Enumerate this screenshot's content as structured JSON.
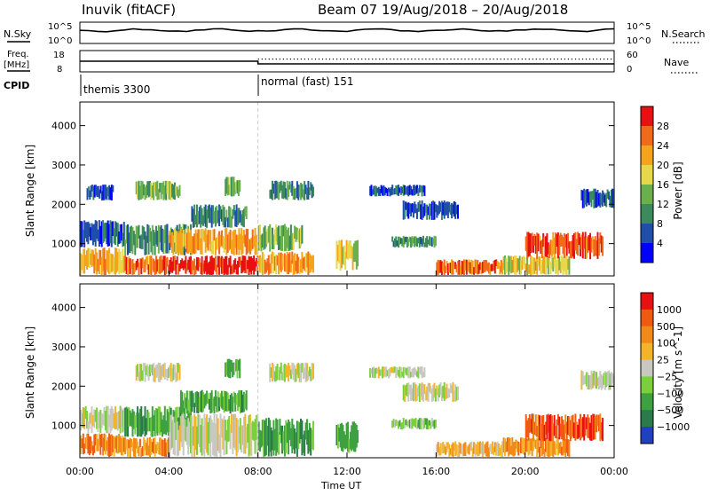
{
  "header": {
    "station": "Inuvik (fitACF)",
    "beam_date": "Beam 07  19/Aug/2018 – 20/Aug/2018"
  },
  "strips": {
    "nsky_label": "N.Sky",
    "nsearch_label": "N.Search",
    "freq_label_1": "Freq.",
    "freq_label_2": "[MHz]",
    "nave_label": "Nave",
    "cpid_label": "CPID",
    "noise_left_ticks": [
      "10^5",
      "10^0"
    ],
    "noise_right_ticks": [
      "10^5",
      "10^0"
    ],
    "freq_ticks": [
      "18",
      "8"
    ],
    "nave_ticks": [
      "60",
      "0"
    ],
    "cpid_segments": [
      {
        "name": "themis 3300",
        "start_hour": 0,
        "end_hour": 8
      },
      {
        "name": "normal (fast) 151",
        "start_hour": 8,
        "end_hour": 24
      }
    ]
  },
  "chart_data": [
    {
      "type": "heatmap",
      "name": "power",
      "ylabel": "Slant Range [km]",
      "yticks": [
        1000,
        2000,
        3000,
        4000
      ],
      "ylim": [
        180,
        4600
      ],
      "xlim": [
        0,
        24
      ],
      "colorbar": {
        "label": "Power [dB]",
        "ticks": [
          "28",
          "24",
          "20",
          "16",
          "12",
          "8",
          "4"
        ],
        "colors": [
          "#0000ff",
          "#1f4fa8",
          "#3a8a5c",
          "#6ab04c",
          "#e6d84a",
          "#f4a41a",
          "#f06a1a",
          "#e81010"
        ]
      },
      "regions": [
        {
          "t0": 0.0,
          "t1": 2.0,
          "r0": 200,
          "r1": 900,
          "level": 5
        },
        {
          "t0": 0.0,
          "t1": 2.0,
          "r0": 900,
          "r1": 1600,
          "level": 1
        },
        {
          "t0": 0.3,
          "t1": 1.5,
          "r0": 2100,
          "r1": 2500,
          "level": 1
        },
        {
          "t0": 2.0,
          "t1": 4.0,
          "r0": 200,
          "r1": 700,
          "level": 6
        },
        {
          "t0": 2.0,
          "t1": 5.0,
          "r0": 700,
          "r1": 1500,
          "level": 2
        },
        {
          "t0": 2.5,
          "t1": 4.5,
          "r0": 2100,
          "r1": 2600,
          "level": 3
        },
        {
          "t0": 4.0,
          "t1": 8.0,
          "r0": 200,
          "r1": 700,
          "level": 7
        },
        {
          "t0": 4.0,
          "t1": 8.0,
          "r0": 700,
          "r1": 1400,
          "level": 5
        },
        {
          "t0": 5.0,
          "t1": 7.5,
          "r0": 1400,
          "r1": 2000,
          "level": 2
        },
        {
          "t0": 6.5,
          "t1": 7.2,
          "r0": 2200,
          "r1": 2700,
          "level": 3
        },
        {
          "t0": 8.0,
          "t1": 10.5,
          "r0": 200,
          "r1": 800,
          "level": 5
        },
        {
          "t0": 8.0,
          "t1": 10.0,
          "r0": 800,
          "r1": 1500,
          "level": 3
        },
        {
          "t0": 8.5,
          "t1": 10.5,
          "r0": 2100,
          "r1": 2600,
          "level": 2
        },
        {
          "t0": 11.5,
          "t1": 12.5,
          "r0": 300,
          "r1": 1100,
          "level": 4
        },
        {
          "t0": 13.0,
          "t1": 15.5,
          "r0": 2200,
          "r1": 2500,
          "level": 1
        },
        {
          "t0": 14.5,
          "t1": 17.0,
          "r0": 1600,
          "r1": 2100,
          "level": 1
        },
        {
          "t0": 14.0,
          "t1": 16.0,
          "r0": 900,
          "r1": 1200,
          "level": 2
        },
        {
          "t0": 16.0,
          "t1": 19.0,
          "r0": 200,
          "r1": 600,
          "level": 6
        },
        {
          "t0": 19.0,
          "t1": 22.0,
          "r0": 200,
          "r1": 700,
          "level": 4
        },
        {
          "t0": 20.0,
          "t1": 23.5,
          "r0": 600,
          "r1": 1300,
          "level": 6
        },
        {
          "t0": 22.5,
          "t1": 24.0,
          "r0": 1900,
          "r1": 2400,
          "level": 1
        }
      ]
    },
    {
      "type": "heatmap",
      "name": "velocity",
      "ylabel": "Slant Range [km]",
      "xlabel": "Time UT",
      "xticks": [
        "00:00",
        "04:00",
        "08:00",
        "12:00",
        "16:00",
        "20:00",
        "00:00"
      ],
      "yticks": [
        1000,
        2000,
        3000,
        4000
      ],
      "ylim": [
        180,
        4600
      ],
      "xlim": [
        0,
        24
      ],
      "colorbar": {
        "label": "Velocity [m s^-1]",
        "ticks": [
          "1000",
          "500",
          "100",
          "25",
          "−25",
          "−100",
          "−500",
          "−1000"
        ],
        "colors": [
          "#2040c0",
          "#2a7a4a",
          "#3fa040",
          "#7ad03a",
          "#c8c8c0",
          "#f4b42a",
          "#f28a1a",
          "#f05a10",
          "#e81010"
        ]
      },
      "regions": [
        {
          "t0": 0.0,
          "t1": 2.0,
          "r0": 200,
          "r1": 800,
          "level": 6
        },
        {
          "t0": 0.0,
          "t1": 2.0,
          "r0": 800,
          "r1": 1500,
          "level": 4
        },
        {
          "t0": 2.5,
          "t1": 4.5,
          "r0": 2100,
          "r1": 2600,
          "level": 4
        },
        {
          "t0": 2.0,
          "t1": 4.0,
          "r0": 200,
          "r1": 700,
          "level": 6
        },
        {
          "t0": 2.0,
          "t1": 5.0,
          "r0": 700,
          "r1": 1500,
          "level": 2
        },
        {
          "t0": 4.0,
          "t1": 8.0,
          "r0": 200,
          "r1": 1300,
          "level": 4
        },
        {
          "t0": 4.5,
          "t1": 7.5,
          "r0": 1300,
          "r1": 1900,
          "level": 2
        },
        {
          "t0": 6.5,
          "t1": 7.2,
          "r0": 2200,
          "r1": 2700,
          "level": 3
        },
        {
          "t0": 8.0,
          "t1": 10.5,
          "r0": 200,
          "r1": 1200,
          "level": 2
        },
        {
          "t0": 8.5,
          "t1": 10.5,
          "r0": 2100,
          "r1": 2600,
          "level": 4
        },
        {
          "t0": 11.5,
          "t1": 12.5,
          "r0": 300,
          "r1": 1100,
          "level": 2
        },
        {
          "t0": 13.0,
          "t1": 15.5,
          "r0": 2200,
          "r1": 2500,
          "level": 4
        },
        {
          "t0": 14.5,
          "t1": 17.0,
          "r0": 1600,
          "r1": 2100,
          "level": 4
        },
        {
          "t0": 14.0,
          "t1": 16.0,
          "r0": 900,
          "r1": 1200,
          "level": 3
        },
        {
          "t0": 16.0,
          "t1": 19.0,
          "r0": 200,
          "r1": 600,
          "level": 5
        },
        {
          "t0": 19.0,
          "t1": 22.0,
          "r0": 200,
          "r1": 700,
          "level": 6
        },
        {
          "t0": 20.0,
          "t1": 23.5,
          "r0": 600,
          "r1": 1300,
          "level": 7
        },
        {
          "t0": 22.5,
          "t1": 24.0,
          "r0": 1900,
          "r1": 2400,
          "level": 4
        }
      ]
    }
  ]
}
